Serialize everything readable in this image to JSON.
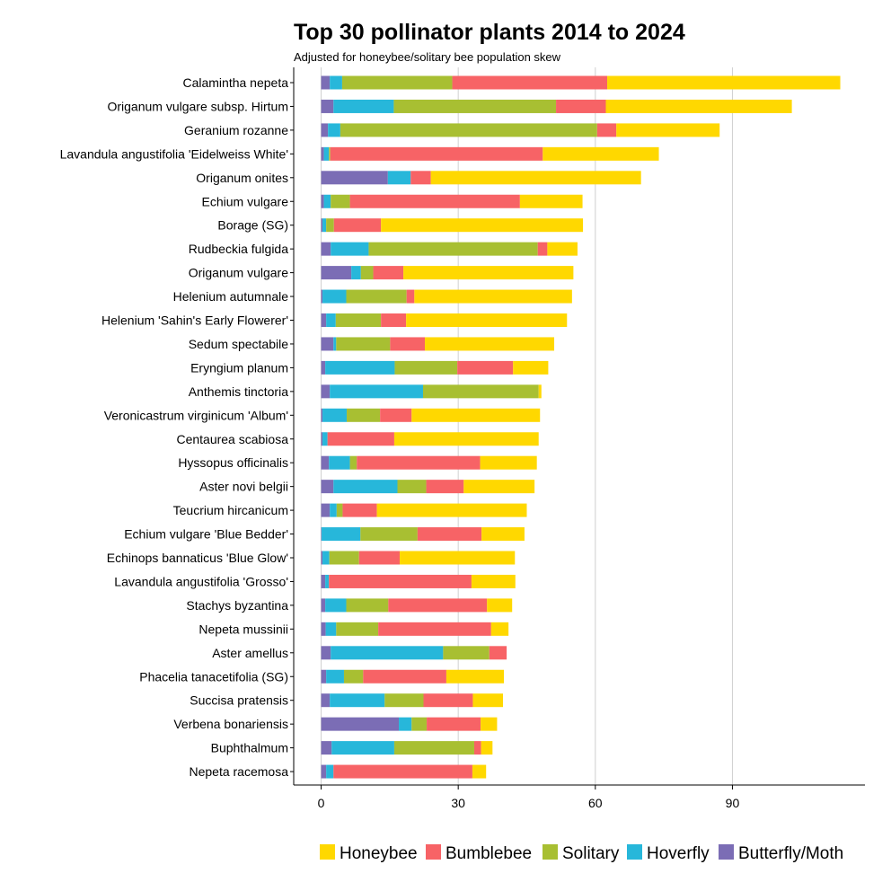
{
  "chart_data": {
    "type": "bar",
    "orientation": "horizontal",
    "stacked": true,
    "title": "Top 30 pollinator plants 2014 to 2024",
    "subtitle": "Adjusted for honeybee/solitary bee population skew",
    "xlabel": "",
    "ylabel": "",
    "xlim": [
      -6,
      119
    ],
    "xticks": [
      0,
      30,
      60,
      90
    ],
    "grid": "vertical major",
    "legend_position": "bottom",
    "categories": [
      "Calamintha nepeta",
      "Origanum vulgare subsp. Hirtum",
      "Geranium rozanne",
      "Lavandula angustifolia 'Eidelweiss White'",
      "Origanum onites",
      "Echium vulgare",
      "Borage (SG)",
      "Rudbeckia fulgida",
      "Origanum vulgare",
      "Helenium autumnale",
      "Helenium 'Sahin's Early Flowerer'",
      "Sedum spectabile",
      "Eryngium planum",
      "Anthemis tinctoria",
      "Veronicastrum virginicum 'Album'",
      "Centaurea scabiosa",
      "Hyssopus officinalis",
      "Aster novi belgii",
      "Teucrium hircanicum",
      "Echium vulgare 'Blue Bedder'",
      "Echinops bannaticus 'Blue Glow'",
      "Lavandula angustifolia 'Grosso'",
      "Stachys byzantina",
      "Nepeta mussinii",
      "Aster amellus",
      "Phacelia tanacetifolia (SG)",
      "Succisa pratensis",
      "Verbena bonariensis",
      "Buphthalmum",
      "Nepeta racemosa"
    ],
    "series": [
      {
        "name": "Butterfly/Moth",
        "color": "#7B6DB5",
        "values": [
          1.9,
          2.7,
          1.5,
          0.6,
          14.6,
          0.6,
          0.3,
          2.1,
          6.6,
          0.3,
          1.1,
          2.7,
          0.9,
          1.9,
          0.3,
          0.3,
          1.7,
          2.7,
          1.9,
          0.1,
          0.3,
          0.9,
          0.9,
          1.0,
          2.1,
          1.1,
          1.9,
          17.0,
          2.3,
          1.1
        ]
      },
      {
        "name": "Hoverfly",
        "color": "#27B7DA",
        "values": [
          2.7,
          13.2,
          2.7,
          1.1,
          5.0,
          1.5,
          0.8,
          8.3,
          2.1,
          5.2,
          2.1,
          0.6,
          15.2,
          20.4,
          5.3,
          1.1,
          4.6,
          14.0,
          1.5,
          8.5,
          1.5,
          0.8,
          4.6,
          2.3,
          24.6,
          3.9,
          12.0,
          2.8,
          13.7,
          1.6
        ]
      },
      {
        "name": "Solitary",
        "color": "#A8BF32",
        "values": [
          24.1,
          35.5,
          56.2,
          0.3,
          0,
          4.2,
          1.7,
          37.0,
          2.7,
          13.2,
          9.9,
          11.8,
          13.7,
          25.3,
          7.3,
          0,
          1.5,
          6.3,
          1.3,
          12.5,
          6.5,
          0,
          9.2,
          9.2,
          10.1,
          4.2,
          8.5,
          3.3,
          17.5,
          0
        ]
      },
      {
        "name": "Bumblebee",
        "color": "#F76366",
        "values": [
          33.9,
          10.9,
          4.2,
          46.5,
          4.4,
          37.2,
          10.3,
          2.1,
          6.6,
          1.7,
          5.5,
          7.6,
          12.2,
          0,
          6.9,
          14.6,
          27.0,
          8.2,
          7.5,
          14.0,
          8.9,
          31.2,
          21.6,
          24.7,
          3.8,
          18.2,
          10.8,
          11.8,
          1.5,
          30.4
        ]
      },
      {
        "name": "Honeybee",
        "color": "#FFD800",
        "values": [
          51.0,
          40.7,
          22.6,
          25.4,
          46.0,
          13.7,
          44.2,
          6.6,
          37.2,
          34.5,
          35.2,
          28.3,
          7.7,
          0.6,
          28.1,
          31.6,
          12.4,
          15.5,
          32.8,
          9.4,
          25.2,
          9.6,
          5.5,
          3.8,
          0,
          12.6,
          6.6,
          3.6,
          2.5,
          3.0
        ]
      }
    ],
    "legend_order": [
      "Honeybee",
      "Bumblebee",
      "Solitary",
      "Hoverfly",
      "Butterfly/Moth"
    ]
  }
}
